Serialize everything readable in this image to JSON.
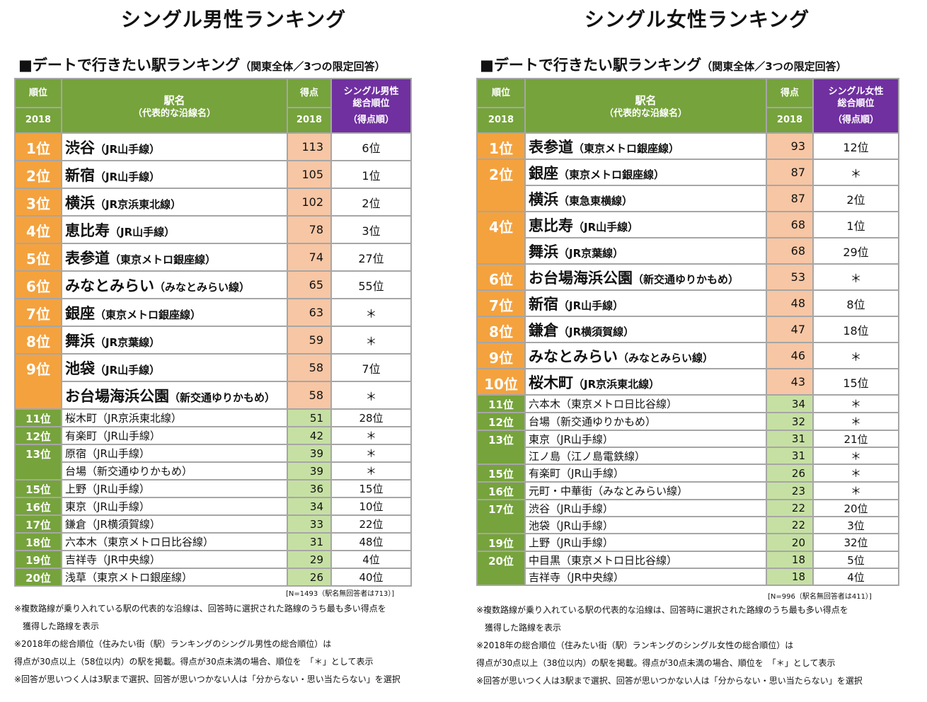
{
  "male": {
    "title": "シングル男性ランキング",
    "subtitle_main": "■デートで行きたい駅ランキング",
    "subtitle_sub": "（関東全体／3つの限定回答）",
    "header": {
      "rank": "順位",
      "rank_year": "2018",
      "station": "駅名",
      "station_sub": "（代表的な沿線名）",
      "score": "得点",
      "score_year": "2018",
      "overall_l1": "シングル男性",
      "overall_l2": "総合順位",
      "overall_l3": "（得点順）"
    },
    "rows": [
      {
        "rank": "1位",
        "station": "渋谷",
        "line": "（JR山手線）",
        "score": "113",
        "overall": "6位"
      },
      {
        "rank": "2位",
        "station": "新宿",
        "line": "（JR山手線）",
        "score": "105",
        "overall": "1位"
      },
      {
        "rank": "3位",
        "station": "横浜",
        "line": "（JR京浜東北線）",
        "score": "102",
        "overall": "2位"
      },
      {
        "rank": "4位",
        "station": "恵比寿",
        "line": "（JR山手線）",
        "score": "78",
        "overall": "3位"
      },
      {
        "rank": "5位",
        "station": "表参道",
        "line": "（東京メトロ銀座線）",
        "score": "74",
        "overall": "27位"
      },
      {
        "rank": "6位",
        "station": "みなとみらい",
        "line": "（みなとみらい線）",
        "score": "65",
        "overall": "55位"
      },
      {
        "rank": "7位",
        "station": "銀座",
        "line": "（東京メトロ銀座線）",
        "score": "63",
        "overall": "＊"
      },
      {
        "rank": "8位",
        "station": "舞浜",
        "line": "（JR京葉線）",
        "score": "59",
        "overall": "＊"
      },
      {
        "rank": "9位",
        "station": "池袋",
        "line": "（JR山手線）",
        "score": "58",
        "overall": "7位"
      },
      {
        "rank": "",
        "station": "お台場海浜公園",
        "line": "（新交通ゆりかもめ）",
        "score": "58",
        "overall": "＊"
      },
      {
        "rank": "11位",
        "station": "桜木町",
        "line": "（JR京浜東北線）",
        "score": "51",
        "overall": "28位"
      },
      {
        "rank": "12位",
        "station": "有楽町",
        "line": "（JR山手線）",
        "score": "42",
        "overall": "＊"
      },
      {
        "rank": "13位",
        "station": "原宿",
        "line": "（JR山手線）",
        "score": "39",
        "overall": "＊"
      },
      {
        "rank": "",
        "station": "台場",
        "line": "（新交通ゆりかもめ）",
        "score": "39",
        "overall": "＊"
      },
      {
        "rank": "15位",
        "station": "上野",
        "line": "（JR山手線）",
        "score": "36",
        "overall": "15位"
      },
      {
        "rank": "16位",
        "station": "東京",
        "line": "（JR山手線）",
        "score": "34",
        "overall": "10位"
      },
      {
        "rank": "17位",
        "station": "鎌倉",
        "line": "（JR横須賀線）",
        "score": "33",
        "overall": "22位"
      },
      {
        "rank": "18位",
        "station": "六本木",
        "line": "（東京メトロ日比谷線）",
        "score": "31",
        "overall": "48位"
      },
      {
        "rank": "19位",
        "station": "吉祥寺",
        "line": "（JR中央線）",
        "score": "29",
        "overall": "4位"
      },
      {
        "rank": "20位",
        "station": "浅草",
        "line": "（東京メトロ銀座線）",
        "score": "26",
        "overall": "40位"
      }
    ],
    "n_note": "[N=1493（駅名無回答者は713）]",
    "notes": [
      "※複数路線が乗り入れている駅の代表的な沿線は、回答時に選択された路線のうち最も多い得点を",
      "　獲得した路線を表示",
      "※2018年の総合順位（住みたい街（駅）ランキングのシングル男性の総合順位）は",
      "得点が30点以上（58位以内）の駅を掲載。得点が30点未満の場合、順位を　「＊」として表示",
      "※回答が思いつく人は3駅まで選択、回答が思いつかない人は「分からない・思い当たらない」を選択"
    ]
  },
  "female": {
    "title": "シングル女性ランキング",
    "subtitle_main": "■デートで行きたい駅ランキング",
    "subtitle_sub": "（関東全体／3つの限定回答）",
    "header": {
      "rank": "順位",
      "rank_year": "2018",
      "station": "駅名",
      "station_sub": "（代表的な沿線名）",
      "score": "得点",
      "score_year": "2018",
      "overall_l1": "シングル女性",
      "overall_l2": "総合順位",
      "overall_l3": "（得点順）"
    },
    "rows": [
      {
        "rank": "1位",
        "station": "表参道",
        "line": "（東京メトロ銀座線）",
        "score": "93",
        "overall": "12位"
      },
      {
        "rank": "2位",
        "station": "銀座",
        "line": "（東京メトロ銀座線）",
        "score": "87",
        "overall": "＊"
      },
      {
        "rank": "",
        "station": "横浜",
        "line": "（東急東横線）",
        "score": "87",
        "overall": "2位"
      },
      {
        "rank": "4位",
        "station": "恵比寿",
        "line": "（JR山手線）",
        "score": "68",
        "overall": "1位"
      },
      {
        "rank": "",
        "station": "舞浜",
        "line": "（JR京葉線）",
        "score": "68",
        "overall": "29位"
      },
      {
        "rank": "6位",
        "station": "お台場海浜公園",
        "line": "（新交通ゆりかもめ）",
        "score": "53",
        "overall": "＊"
      },
      {
        "rank": "7位",
        "station": "新宿",
        "line": "（JR山手線）",
        "score": "48",
        "overall": "8位"
      },
      {
        "rank": "8位",
        "station": "鎌倉",
        "line": "（JR横須賀線）",
        "score": "47",
        "overall": "18位"
      },
      {
        "rank": "9位",
        "station": "みなとみらい",
        "line": "（みなとみらい線）",
        "score": "46",
        "overall": "＊"
      },
      {
        "rank": "10位",
        "station": "桜木町",
        "line": "（JR京浜東北線）",
        "score": "43",
        "overall": "15位"
      },
      {
        "rank": "11位",
        "station": "六本木",
        "line": "（東京メトロ日比谷線）",
        "score": "34",
        "overall": "＊"
      },
      {
        "rank": "12位",
        "station": "台場",
        "line": "（新交通ゆりかもめ）",
        "score": "32",
        "overall": "＊"
      },
      {
        "rank": "13位",
        "station": "東京",
        "line": "（JR山手線）",
        "score": "31",
        "overall": "21位"
      },
      {
        "rank": "",
        "station": "江ノ島",
        "line": "（江ノ島電鉄線）",
        "score": "31",
        "overall": "＊"
      },
      {
        "rank": "15位",
        "station": "有楽町",
        "line": "（JR山手線）",
        "score": "26",
        "overall": "＊"
      },
      {
        "rank": "16位",
        "station": "元町・中華街",
        "line": "（みなとみらい線）",
        "score": "23",
        "overall": "＊"
      },
      {
        "rank": "17位",
        "station": "渋谷",
        "line": "（JR山手線）",
        "score": "22",
        "overall": "20位"
      },
      {
        "rank": "",
        "station": "池袋",
        "line": "（JR山手線）",
        "score": "22",
        "overall": "3位"
      },
      {
        "rank": "19位",
        "station": "上野",
        "line": "（JR山手線）",
        "score": "20",
        "overall": "32位"
      },
      {
        "rank": "20位",
        "station": "中目黒",
        "line": "（東京メトロ日比谷線）",
        "score": "18",
        "overall": "5位"
      },
      {
        "rank": "",
        "station": "吉祥寺",
        "line": "（JR中央線）",
        "score": "18",
        "overall": "4位"
      }
    ],
    "n_note": "[N=996（駅名無回答者は411）]",
    "notes": [
      "※複数路線が乗り入れている駅の代表的な沿線は、回答時に選択された路線のうち最も多い得点を",
      "　獲得した路線を表示",
      "※2018年の総合順位（住みたい街（駅）ランキングのシングル女性の総合順位）は",
      "得点が30点以上（38位以内）の駅を掲載。得点が30点未満の場合、順位を　「＊」として表示",
      "※回答が思いつく人は3駅まで選択、回答が思いつかない人は「分からない・思い当たらない」を選択"
    ]
  }
}
